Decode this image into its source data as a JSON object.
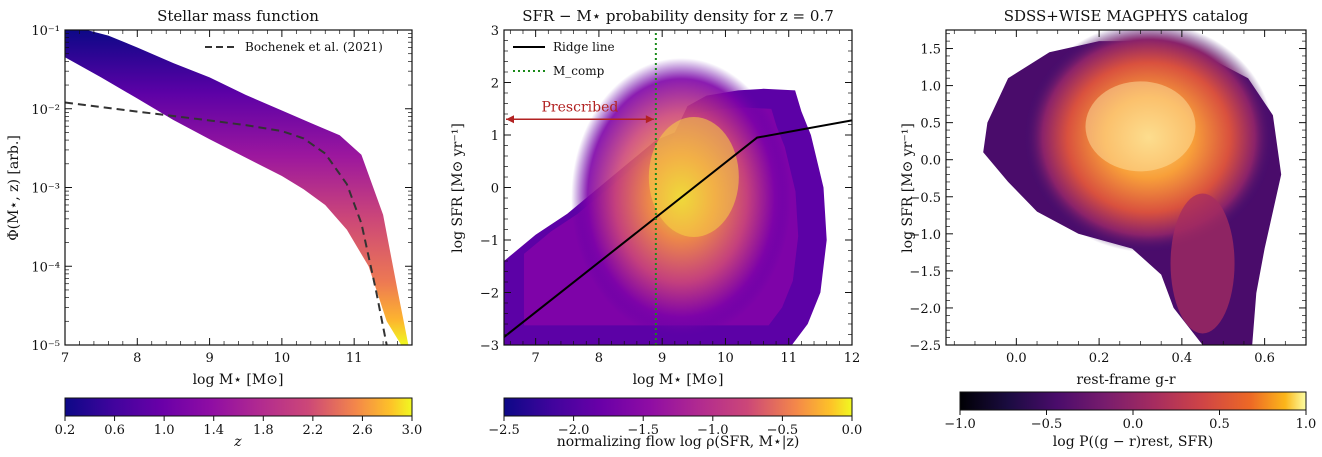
{
  "chart_data": [
    {
      "type": "line",
      "title": "Stellar mass function",
      "xlabel": "log M⋆ [M⊙]",
      "ylabel": "Φ(M⋆, z) [arb.]",
      "xlim": [
        7,
        11.8
      ],
      "ylim": [
        1e-05,
        0.1
      ],
      "y_log": true,
      "xticks": [
        "7",
        "8",
        "9",
        "10",
        "11"
      ],
      "yticks": [
        "10⁻⁵",
        "10⁻⁴",
        "10⁻³",
        "10⁻²",
        "10⁻¹"
      ],
      "legend_location": "top-right",
      "series": [
        {
          "name": "Bochenek et al. (2021)",
          "style": "dashed",
          "color": "#333333",
          "x": [
            7.0,
            7.5,
            8.0,
            8.5,
            9.0,
            9.5,
            10.0,
            10.3,
            10.6,
            10.9,
            11.1,
            11.3,
            11.45
          ],
          "y": [
            0.012,
            0.0105,
            0.0092,
            0.0081,
            0.0071,
            0.0062,
            0.0052,
            0.0042,
            0.0027,
            0.0011,
            0.00035,
            5e-05,
            1e-05
          ]
        },
        {
          "name": "z band high edge",
          "style": "band",
          "color": "#0d0887",
          "x": [
            7.3,
            7.6,
            8.0,
            8.5,
            9.0,
            9.5,
            10.0,
            10.4,
            10.8,
            11.1,
            11.4,
            11.6,
            11.75
          ],
          "y": [
            0.1,
            0.085,
            0.06,
            0.038,
            0.025,
            0.015,
            0.0095,
            0.0066,
            0.0046,
            0.0026,
            0.00045,
            5e-05,
            1e-05
          ]
        },
        {
          "name": "z band low edge",
          "style": "band",
          "color": "#f0f921",
          "x": [
            7.0,
            7.5,
            8.0,
            8.5,
            9.0,
            9.5,
            10.0,
            10.3,
            10.6,
            10.9,
            11.2,
            11.45,
            11.65
          ],
          "y": [
            0.045,
            0.025,
            0.0135,
            0.0072,
            0.0041,
            0.0024,
            0.0014,
            0.00095,
            0.0006,
            0.00029,
            0.0001,
            2e-05,
            1e-05
          ]
        }
      ],
      "colorbar": {
        "label": "z",
        "min": 0.2,
        "max": 3.0,
        "ticks": [
          "0.2",
          "0.6",
          "1.0",
          "1.4",
          "1.8",
          "2.2",
          "2.6",
          "3.0"
        ],
        "colormap": "plasma"
      }
    },
    {
      "type": "heatmap",
      "title": "SFR − M⋆ probability density for z = 0.7",
      "xlabel": "log M⋆ [M⊙]",
      "ylabel": "log SFR [M⊙ yr⁻¹]",
      "xlim": [
        6.5,
        12
      ],
      "ylim": [
        -3,
        3
      ],
      "xticks": [
        "7",
        "8",
        "9",
        "10",
        "11",
        "12"
      ],
      "yticks": [
        "−3",
        "−2",
        "−1",
        "0",
        "1",
        "2",
        "3"
      ],
      "legend_location": "top-left",
      "series": [
        {
          "name": "Ridge line",
          "style": "solid",
          "color": "#000000",
          "x": [
            6.5,
            10.5,
            12.0
          ],
          "y": [
            -2.85,
            0.95,
            1.28
          ]
        },
        {
          "name": "M_comp",
          "style": "dotted",
          "color": "#1a8a1a",
          "x": [
            8.9,
            8.9
          ],
          "y": [
            -3,
            3
          ]
        }
      ],
      "annotation": {
        "text": "Prescribed",
        "color": "#b22222",
        "x_from": 6.5,
        "x_to": 8.9,
        "y": 1.3
      },
      "colorbar": {
        "label": "normalizing flow log ρ(SFR, M⋆|z)",
        "min": -2.5,
        "max": 0.0,
        "ticks": [
          "−2.5",
          "−2.0",
          "−1.5",
          "−1.0",
          "−0.5",
          "0.0"
        ],
        "colormap": "plasma"
      }
    },
    {
      "type": "heatmap",
      "title": "SDSS+WISE MAGPHYS catalog",
      "xlabel": "rest-frame g-r",
      "ylabel": "log SFR [M⊙ yr⁻¹]",
      "xlim": [
        -0.17,
        0.7
      ],
      "ylim": [
        -2.5,
        1.75
      ],
      "xticks": [
        "0.0",
        "0.2",
        "0.4",
        "0.6"
      ],
      "yticks": [
        "−2.5",
        "−2.0",
        "−1.5",
        "−1.0",
        "−0.5",
        "0.0",
        "0.5",
        "1.0",
        "1.5"
      ],
      "colorbar": {
        "label": "log P((g − r)rest, SFR)",
        "min": -1.0,
        "max": 1.0,
        "ticks": [
          "−1.0",
          "−0.5",
          "0.0",
          "0.5",
          "1.0"
        ],
        "colormap": "inferno"
      }
    }
  ]
}
